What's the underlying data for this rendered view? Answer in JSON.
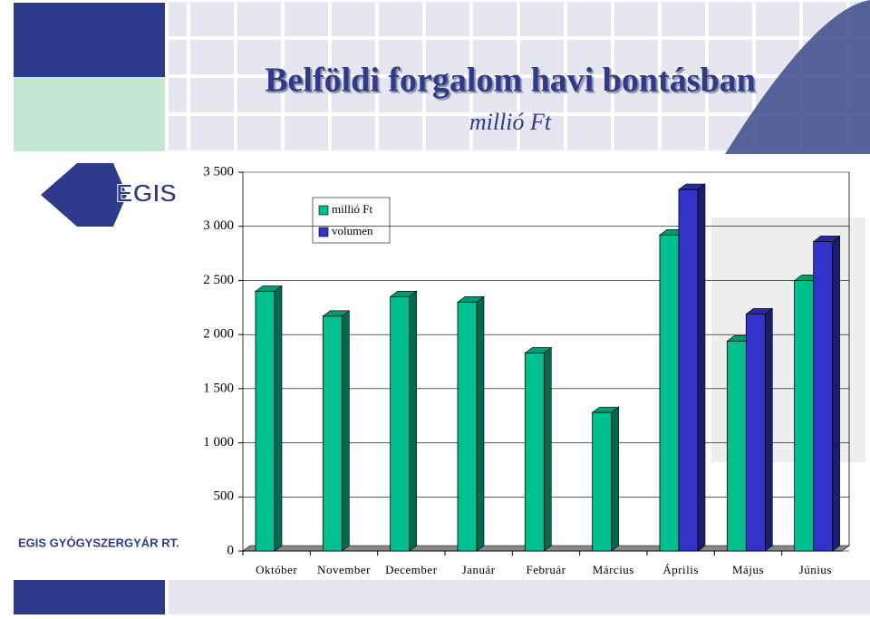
{
  "logo": "EGIS",
  "company": "EGIS GYÓGYSZERGYÁR RT.",
  "chart_data": {
    "type": "bar3d",
    "title": "Belföldi forgalom havi bontásban",
    "subtitle": "millió Ft",
    "categories": [
      "Október",
      "November",
      "December",
      "Január",
      "Február",
      "Március",
      "Április",
      "Május",
      "Június"
    ],
    "series": [
      {
        "name": "millió Ft",
        "color": "#00c090",
        "values": [
          2400,
          2170,
          2350,
          2300,
          1830,
          1280,
          2920,
          1940,
          2500
        ]
      },
      {
        "name": "volumen",
        "color": "#3333cc",
        "values": [
          null,
          null,
          null,
          null,
          null,
          null,
          3340,
          2190,
          2860
        ]
      }
    ],
    "ylim": [
      0,
      3500
    ],
    "yticks": [
      0,
      500,
      {
        "value": 1000,
        "label": "1 000"
      },
      {
        "value": 1500,
        "label": "1 500"
      },
      {
        "value": 2000,
        "label": "2 000"
      },
      {
        "value": 2500,
        "label": "2 500"
      },
      {
        "value": 3000,
        "label": "3 000"
      },
      {
        "value": 3500,
        "label": "3 500"
      }
    ],
    "grid": true
  }
}
